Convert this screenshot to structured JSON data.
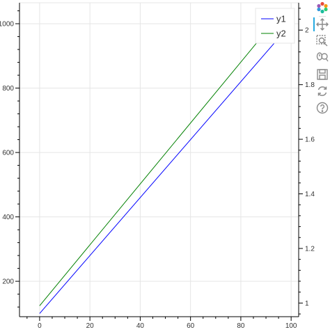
{
  "chart_data": {
    "type": "line",
    "x": [
      0,
      95
    ],
    "series": [
      {
        "name": "y1",
        "values": [
          100,
          955
        ],
        "axis": "left",
        "color": "#0000ff"
      },
      {
        "name": "y2",
        "values": [
          0.99,
          2.05
        ],
        "axis": "right",
        "color": "#008000"
      }
    ],
    "xlim": [
      -8,
      103
    ],
    "ylim_left": [
      90,
      1065
    ],
    "ylim_right": [
      0.95,
      2.1
    ],
    "x_ticks": [
      0,
      20,
      40,
      60,
      80,
      100
    ],
    "y_left_ticks": [
      200,
      400,
      600,
      800,
      1000
    ],
    "y_right_ticks": [
      1,
      1.2,
      1.4,
      1.6,
      1.8,
      2
    ],
    "grid": true,
    "legend_position": "top-right"
  },
  "toolbar": {
    "tools": [
      {
        "name": "bokeh-logo-icon",
        "active": false
      },
      {
        "name": "pan-icon",
        "active": true
      },
      {
        "name": "box-zoom-icon",
        "active": false
      },
      {
        "name": "wheel-zoom-icon",
        "active": false
      },
      {
        "name": "save-icon",
        "active": false
      },
      {
        "name": "reset-icon",
        "active": false
      },
      {
        "name": "help-icon",
        "active": false
      }
    ]
  }
}
